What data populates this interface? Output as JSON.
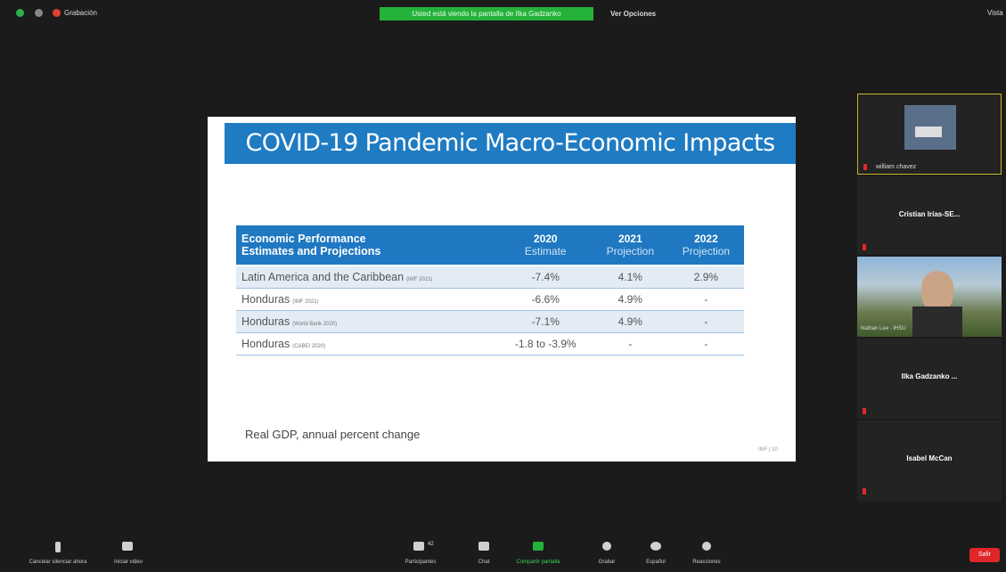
{
  "top_bar": {
    "recording": "Grabación",
    "share_banner": "Usted está viendo la pantalla de Ilka Gadzanko",
    "view_options": "Ver Opciones",
    "view": "Vista"
  },
  "slide": {
    "title": "COVID-19 Pandemic Macro-Economic Impacts",
    "table": {
      "header": {
        "label_line1": "Economic Performance",
        "label_line2": "Estimates and Projections",
        "columns": [
          {
            "year": "2020",
            "sub": "Estimate"
          },
          {
            "year": "2021",
            "sub": "Projection"
          },
          {
            "year": "2022",
            "sub": "Projection"
          }
        ]
      },
      "rows": [
        {
          "name": "Latin America and the Caribbean",
          "source": "(IMF 2021)",
          "cells": [
            "-7.4%",
            "4.1%",
            "2.9%"
          ]
        },
        {
          "name": "Honduras",
          "source": "(IMF 2021)",
          "cells": [
            "-6.6%",
            "4.9%",
            "-"
          ]
        },
        {
          "name": "Honduras",
          "source": "(World Bank 2020)",
          "cells": [
            "-7.1%",
            "4.9%",
            "-"
          ]
        },
        {
          "name": "Honduras",
          "source": "(CABEI 2020)",
          "cells": [
            "-1.8 to -3.9%",
            "-",
            "-"
          ]
        }
      ]
    },
    "footnote": "Real GDP, annual percent change",
    "page_number": "IMF | 10"
  },
  "participants": [
    "william chavez",
    "Cristian Irías-SE...",
    "Nathan Lee - IHSU",
    "Ilka Gadzanko ...",
    "Isabel McCan"
  ],
  "toolbar": {
    "unmute": "Cancelar silenciar ahora",
    "video": "Iniciar video",
    "participants_count": "42",
    "participants": "Participantes",
    "chat": "Chat",
    "share": "Compartir pantalla",
    "record": "Grabar",
    "language": "Español",
    "reactions": "Reacciones",
    "leave": "Salir"
  }
}
